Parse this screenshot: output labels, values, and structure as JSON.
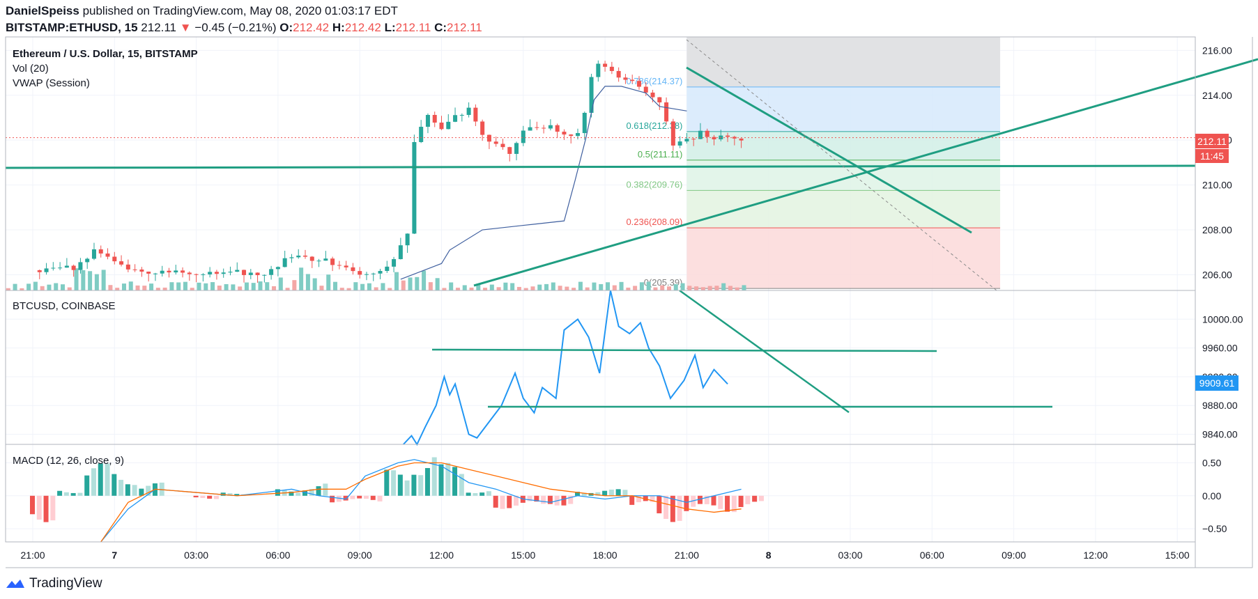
{
  "header": {
    "author": "DanielSpeiss",
    "published": "published on TradingView.com, May 08, 2020 01:03:17 EDT",
    "symbol": "BITSTAMP:ETHUSD, 15",
    "last": "212.11",
    "arrow": "▼",
    "change": "−0.45 (−0.21%)",
    "o_label": "O:",
    "o": "212.42",
    "h_label": "H:",
    "h": "212.42",
    "l_label": "L:",
    "l": "212.11",
    "c_label": "C:",
    "c": "212.11"
  },
  "legend": {
    "main": "Ethereum / U.S. Dollar, 15, BITSTAMP",
    "vol": "Vol (20)",
    "vwap": "VWAP (Session)",
    "btc": "BTCUSD, COINBASE",
    "macd": "MACD (12, 26, close, 9)"
  },
  "price_badge": {
    "price": "212.11",
    "countdown": "11:45"
  },
  "btc_badge": "9909.61",
  "footer": {
    "brand": "TradingView"
  },
  "colors": {
    "up": "#26a69a",
    "down": "#ef5350",
    "btc": "#2196f3",
    "macd": "#2196f3",
    "signal": "#ff6d00",
    "drawing": "#1f9e82"
  },
  "chart_data": [
    {
      "type": "line",
      "title": "Ethereum / U.S. Dollar, 15, BITSTAMP",
      "ylim": [
        205.3,
        216.6
      ],
      "yticks": [
        "216.00",
        "214.00",
        "212.00",
        "210.00",
        "208.00",
        "206.00"
      ],
      "ytick_values": [
        216,
        214,
        212,
        210,
        208,
        206
      ],
      "x_axis": {
        "labels": [
          "21:00",
          "7",
          "03:00",
          "06:00",
          "09:00",
          "12:00",
          "15:00",
          "18:00",
          "21:00",
          "8",
          "03:00",
          "06:00",
          "09:00",
          "12:00",
          "15:00"
        ],
        "hours": [
          0,
          3,
          6,
          9,
          12,
          15,
          18,
          21,
          24,
          27,
          30,
          33,
          36,
          39,
          42
        ],
        "range_hours": [
          -1,
          43
        ]
      },
      "fib_retracement": {
        "levels": [
          {
            "label": "0.786(214.37)",
            "value": 214.37
          },
          {
            "label": "0.618(212.38)",
            "value": 212.38
          },
          {
            "label": "0.5(211.11)",
            "value": 211.11
          },
          {
            "label": "0.382(209.76)",
            "value": 209.76
          },
          {
            "label": "0.236(208.09)",
            "value": 208.09
          },
          {
            "label": "0(205.39)",
            "value": 205.39
          }
        ]
      },
      "price_series": [
        [
          0,
          206.2
        ],
        [
          1.5,
          206.3
        ],
        [
          2.3,
          207.1
        ],
        [
          3.5,
          206.2
        ],
        [
          6,
          206.1
        ],
        [
          8.5,
          206.1
        ],
        [
          9.5,
          206.8
        ],
        [
          10.5,
          206.7
        ],
        [
          11.5,
          206.3
        ],
        [
          12,
          206.0
        ],
        [
          13,
          206.3
        ],
        [
          13.5,
          207.2
        ],
        [
          13.9,
          208.4
        ],
        [
          14,
          211.8
        ],
        [
          14.5,
          213.2
        ],
        [
          15,
          212.4
        ],
        [
          15.5,
          213.0
        ],
        [
          16,
          213.4
        ],
        [
          16.5,
          212.3
        ],
        [
          17,
          211.8
        ],
        [
          17.5,
          211.5
        ],
        [
          18,
          212.4
        ],
        [
          19,
          212.6
        ],
        [
          19.5,
          212.3
        ],
        [
          20,
          212.3
        ],
        [
          20.3,
          213.5
        ],
        [
          20.6,
          215.5
        ],
        [
          21,
          215.3
        ],
        [
          21.5,
          214.8
        ],
        [
          22,
          214.6
        ],
        [
          22.5,
          214.1
        ],
        [
          23,
          213.8
        ],
        [
          23.5,
          211.8
        ],
        [
          24,
          212.0
        ],
        [
          24.5,
          212.3
        ],
        [
          25,
          212.1
        ],
        [
          25.6,
          212.2
        ],
        [
          26,
          212.1
        ]
      ],
      "vwap_series": [
        [
          13.5,
          205.8
        ],
        [
          15,
          206.5
        ],
        [
          15.3,
          207.1
        ],
        [
          16.5,
          208.0
        ],
        [
          18,
          208.2
        ],
        [
          19.5,
          208.4
        ],
        [
          19.9,
          210.2
        ],
        [
          20.3,
          212.1
        ],
        [
          20.6,
          213.8
        ],
        [
          21,
          214.4
        ],
        [
          21.6,
          214.4
        ],
        [
          22.5,
          214.1
        ],
        [
          23,
          213.5
        ],
        [
          23.5,
          213.4
        ],
        [
          24,
          213.3
        ]
      ],
      "volume_series": "Vol (20)"
    },
    {
      "type": "line",
      "title": "BTCUSD, COINBASE",
      "ylim": [
        9826,
        10040
      ],
      "yticks": [
        "10000.00",
        "9960.00",
        "9920.00",
        "9880.00",
        "9840.00"
      ],
      "ytick_values": [
        10000,
        9960,
        9920,
        9880,
        9840
      ],
      "last": 9909.61,
      "series": [
        {
          "x": [
            13.6,
            13.9,
            14.1,
            14.4,
            14.8,
            15.1,
            15.3,
            15.5,
            16.0,
            16.3,
            16.8,
            17.2,
            17.7,
            18.0,
            18.4,
            18.7,
            19.2,
            19.5,
            20.0,
            20.4,
            20.8,
            21.2,
            21.5,
            21.9,
            22.3,
            22.6,
            23.0,
            23.4,
            23.9,
            24.3,
            24.6,
            25.0,
            25.5
          ],
          "y": [
            9790,
            9838,
            9820,
            9850,
            9880,
            9920,
            9895,
            9910,
            9840,
            9835,
            9860,
            9880,
            9925,
            9890,
            9870,
            9905,
            9890,
            9985,
            10000,
            9975,
            9925,
            10040,
            9990,
            9980,
            9995,
            9960,
            9935,
            9890,
            9915,
            9950,
            9905,
            9930,
            9910
          ]
        }
      ]
    },
    {
      "type": "bar",
      "title": "MACD (12, 26, close, 9)",
      "ylim": [
        -0.7,
        0.78
      ],
      "yticks": [
        "0.50",
        "0.00",
        "−0.50"
      ],
      "ytick_values": [
        0.5,
        0,
        -0.5
      ],
      "macd_series": [
        [
          2.5,
          -0.8
        ],
        [
          3.5,
          -0.2
        ],
        [
          4.5,
          0.1
        ],
        [
          6,
          0.05
        ],
        [
          7.5,
          0.0
        ],
        [
          9.5,
          0.1
        ],
        [
          10.5,
          0.0
        ],
        [
          11.5,
          -0.05
        ],
        [
          12.2,
          0.3
        ],
        [
          13.4,
          0.5
        ],
        [
          14,
          0.55
        ],
        [
          15,
          0.45
        ],
        [
          16,
          0.2
        ],
        [
          17,
          0.1
        ],
        [
          18,
          -0.05
        ],
        [
          19,
          -0.1
        ],
        [
          20,
          0.0
        ],
        [
          21,
          -0.05
        ],
        [
          22,
          0.0
        ],
        [
          23,
          0.0
        ],
        [
          24,
          -0.1
        ],
        [
          25,
          0.0
        ],
        [
          26,
          0.1
        ]
      ],
      "signal_series": [
        [
          2.5,
          -0.9
        ],
        [
          3.5,
          -0.1
        ],
        [
          4.5,
          0.1
        ],
        [
          6,
          0.05
        ],
        [
          7.5,
          0.0
        ],
        [
          9.5,
          0.05
        ],
        [
          10.5,
          0.1
        ],
        [
          11.5,
          0.1
        ],
        [
          12.2,
          0.25
        ],
        [
          13.4,
          0.45
        ],
        [
          14,
          0.5
        ],
        [
          15,
          0.5
        ],
        [
          16,
          0.4
        ],
        [
          17,
          0.3
        ],
        [
          18,
          0.2
        ],
        [
          19,
          0.1
        ],
        [
          20,
          0.05
        ],
        [
          21,
          0.0
        ],
        [
          22,
          0.0
        ],
        [
          23,
          -0.1
        ],
        [
          24,
          -0.2
        ],
        [
          25,
          -0.25
        ],
        [
          26,
          -0.2
        ]
      ],
      "histogram": [
        [
          0,
          -0.4
        ],
        [
          1,
          0.1
        ],
        [
          2,
          0.5
        ],
        [
          3,
          0.4
        ],
        [
          4,
          0.2
        ],
        [
          5,
          0.0
        ],
        [
          6,
          -0.05
        ],
        [
          7,
          0.05
        ],
        [
          8,
          0.0
        ],
        [
          9,
          0.1
        ],
        [
          10,
          0.2
        ],
        [
          11,
          -0.1
        ],
        [
          12,
          -0.1
        ],
        [
          13,
          0.4
        ],
        [
          14,
          0.75
        ],
        [
          15,
          0.5
        ],
        [
          16,
          0.1
        ],
        [
          17,
          -0.2
        ],
        [
          18,
          -0.2
        ],
        [
          19,
          -0.15
        ],
        [
          20,
          0.1
        ],
        [
          21,
          0.1
        ],
        [
          22,
          -0.2
        ],
        [
          23,
          -0.4
        ],
        [
          24,
          -0.3
        ],
        [
          25,
          -0.25
        ],
        [
          26,
          -0.2
        ]
      ]
    }
  ]
}
